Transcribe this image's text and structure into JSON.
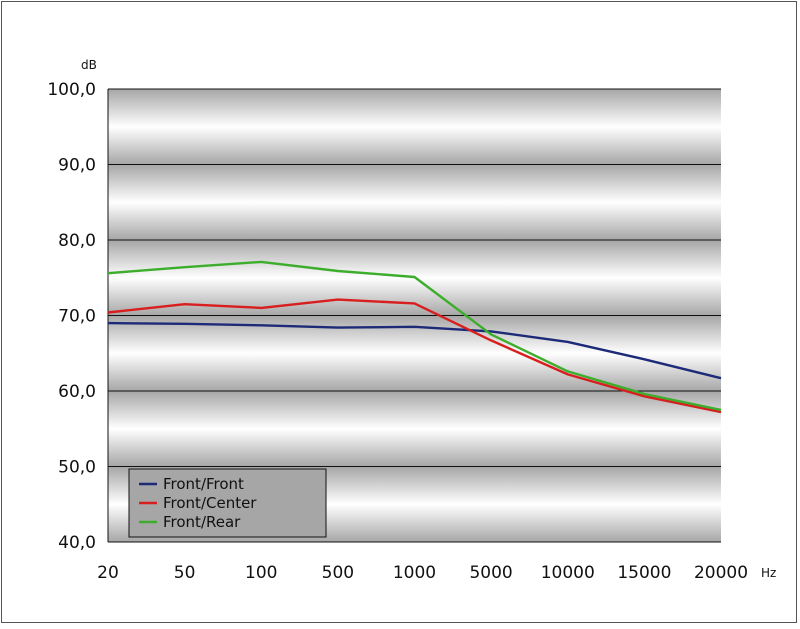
{
  "chart_data": {
    "type": "line",
    "ylabel": "dB",
    "xlabel": "Hz",
    "categories": [
      "20",
      "50",
      "100",
      "500",
      "1000",
      "5000",
      "10000",
      "15000",
      "20000"
    ],
    "ylim": [
      40,
      100
    ],
    "yticks": [
      "40,0",
      "50,0",
      "60,0",
      "70,0",
      "80,0",
      "90,0",
      "100,0"
    ],
    "ytick_values": [
      40,
      50,
      60,
      70,
      80,
      90,
      100
    ],
    "grid": true,
    "legend_position": "bottom-left",
    "series": [
      {
        "name": "Front/Front",
        "color": "#1c2a78",
        "values": [
          69.0,
          68.9,
          68.7,
          68.4,
          68.5,
          67.9,
          66.5,
          64.2,
          61.7
        ]
      },
      {
        "name": "Front/Center",
        "color": "#d81e1e",
        "values": [
          70.4,
          71.5,
          71.0,
          72.1,
          71.6,
          66.7,
          62.2,
          59.3,
          57.2
        ]
      },
      {
        "name": "Front/Rear",
        "color": "#3cae2c",
        "values": [
          75.6,
          76.4,
          77.1,
          75.9,
          75.1,
          67.5,
          62.6,
          59.6,
          57.5
        ]
      }
    ]
  }
}
